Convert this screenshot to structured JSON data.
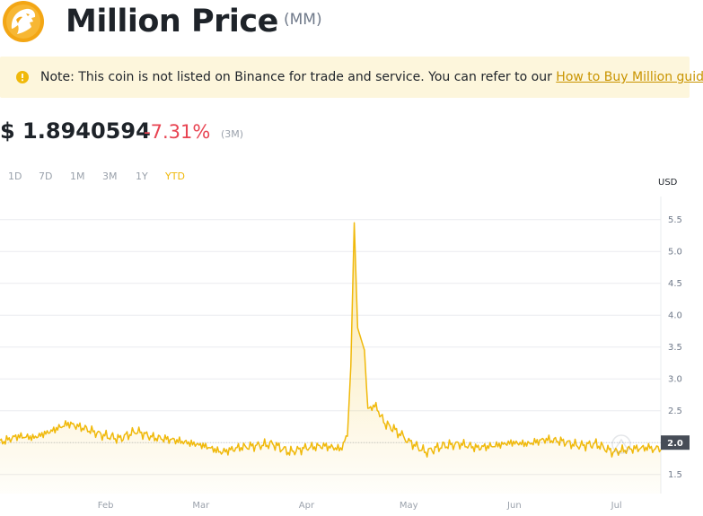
{
  "coin": {
    "name": "Million Price",
    "symbol": "(MM)"
  },
  "note": {
    "text": "Note: This coin is not listed on Binance for trade and service. You can refer to our ",
    "link": "How to Buy Million guide",
    "suffix": "."
  },
  "price": {
    "value": "$ 1.8940594",
    "change": "-7.31%",
    "period": "(3M)"
  },
  "ranges": [
    "1D",
    "7D",
    "1M",
    "3M",
    "1Y",
    "YTD"
  ],
  "active_range": "YTD",
  "colors": {
    "accent": "#f0b90b",
    "negative": "#e84452",
    "note_bg": "#fdf6dc",
    "muted": "#9aa1ab"
  },
  "chart_data": {
    "type": "area",
    "currency_label": "USD",
    "current_value_label": "2.0",
    "y_ticks": [
      "5.5",
      "5.0",
      "4.5",
      "4.0",
      "3.5",
      "3.0",
      "2.5",
      "2.0",
      "1.5"
    ],
    "ylim": [
      1.0,
      5.5
    ],
    "x_ticks": [
      "Feb",
      "Mar",
      "Apr",
      "May",
      "Jun",
      "Jul"
    ],
    "x_tick_days": [
      31,
      59,
      90,
      120,
      151,
      181
    ],
    "x_domain_days": [
      0,
      194
    ],
    "series": [
      {
        "days": [
          0,
          5,
          10,
          15,
          20,
          25,
          30,
          35,
          40,
          45,
          50,
          55,
          60,
          65,
          70,
          75,
          80,
          85,
          90,
          95,
          100,
          102,
          103,
          104,
          105,
          107,
          108,
          110,
          113,
          116,
          120,
          125,
          130,
          135,
          140,
          145,
          150,
          155,
          160,
          165,
          170,
          175,
          180,
          185,
          190,
          194
        ],
        "values": [
          2.0,
          2.1,
          2.08,
          2.18,
          2.3,
          2.22,
          2.12,
          2.06,
          2.18,
          2.08,
          2.05,
          2.0,
          1.95,
          1.85,
          1.92,
          1.95,
          1.98,
          1.85,
          1.92,
          1.95,
          1.9,
          2.1,
          3.2,
          5.45,
          3.8,
          3.45,
          2.5,
          2.6,
          2.3,
          2.2,
          2.02,
          1.85,
          1.95,
          1.98,
          1.92,
          1.95,
          2.0,
          1.98,
          2.05,
          2.02,
          1.95,
          1.98,
          1.85,
          1.9,
          1.92,
          1.89
        ]
      }
    ]
  }
}
